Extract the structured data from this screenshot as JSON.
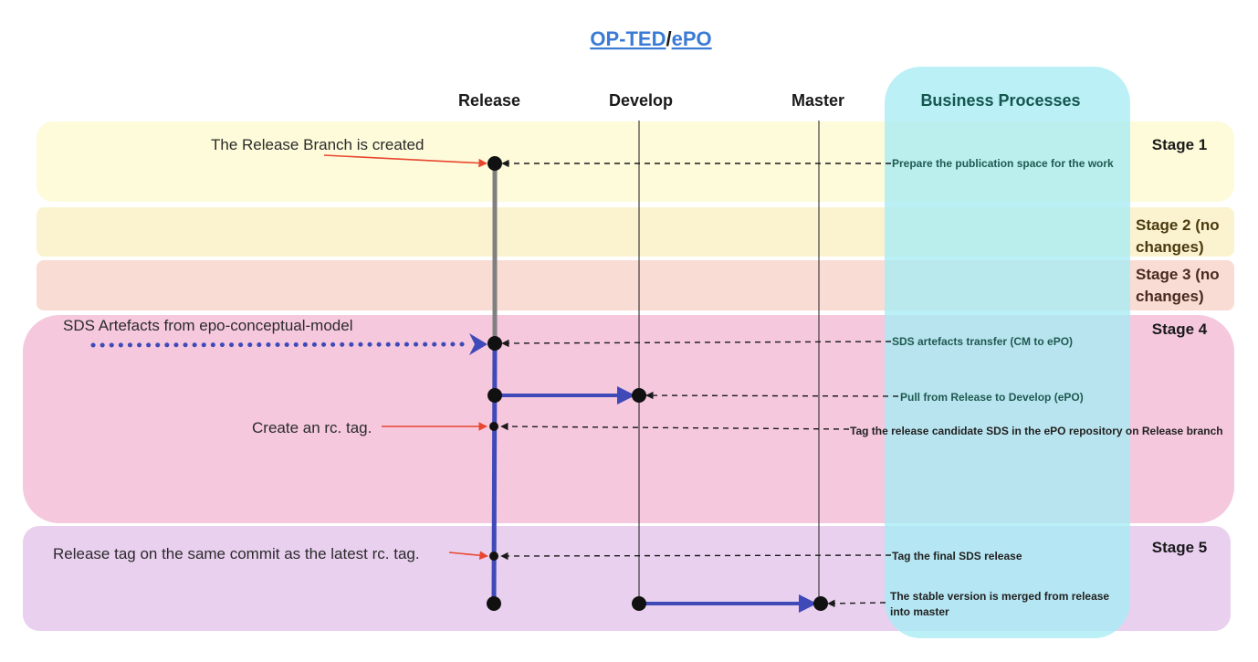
{
  "title": {
    "part1": "OP-TED",
    "separator": "/",
    "part2": "ePO"
  },
  "columns": {
    "release": "Release",
    "develop": "Develop",
    "master": "Master",
    "business": "Business Processes"
  },
  "stages": [
    {
      "label_line1": "Stage 1",
      "label_line2": "",
      "color": "#fdfbd9"
    },
    {
      "label_line1": "Stage 2 (no",
      "label_line2": "changes)",
      "color": "#fbf3cf"
    },
    {
      "label_line1": "Stage 3 (no",
      "label_line2": "changes)",
      "color": "#f9dcd4"
    },
    {
      "label_line1": "Stage 4",
      "label_line2": "",
      "color": "#f5c8de"
    },
    {
      "label_line1": "Stage 5",
      "label_line2": "",
      "color": "#e9d0ef"
    }
  ],
  "notes": {
    "release_branch": "The Release Branch is created",
    "sds_artefacts": "SDS Artefacts from epo-conceptual-model",
    "rc_tag": "Create an rc. tag.",
    "release_tag": "Release tag on the same commit as the latest rc. tag."
  },
  "processes": {
    "prepare": "Prepare the publication space for the work",
    "transfer": "SDS artefacts transfer (CM to ePO)",
    "pull": "Pull from Release to Develop (ePO)",
    "tag_rc": "Tag the release candidate SDS in the ePO repository on Release branch",
    "tag_final": "Tag the final SDS release",
    "merge_line1": "The stable version is merged from release",
    "merge_line2": "into master"
  },
  "colors": {
    "business_panel": "#a6ecf3",
    "branch_blue": "#3f4ab8",
    "branch_grey": "#808080",
    "annotation_red": "#e8462f",
    "title_link": "#3a7bd5"
  }
}
